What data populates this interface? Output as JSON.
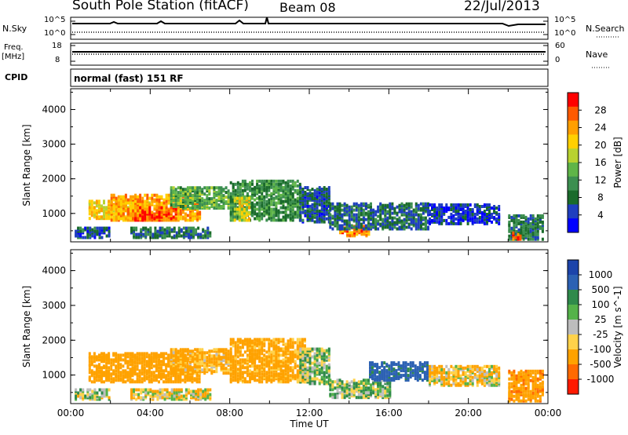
{
  "header": {
    "station": "South Pole Station (fitACF)",
    "beam": "Beam 08",
    "date": "22/Jul/2013"
  },
  "top_panels": {
    "nsky_label": "N.Sky",
    "nsky_top_tick": "10^5",
    "nsky_bottom_tick": "10^0",
    "nsearch_label": "N.Search",
    "nsearch_top_tick": "10^5",
    "nsearch_bottom_tick": "10^0",
    "freq_label": "Freq.",
    "freq_unit": "[MHz]",
    "freq_ticks": [
      "18",
      "8"
    ],
    "nave_label": "Nave",
    "nave_ticks": [
      "60",
      "0"
    ],
    "cpid_label": "CPID",
    "cpid_value": "normal (fast) 151 RF"
  },
  "chart_data": [
    {
      "type": "heatmap",
      "name": "power",
      "ylabel": "Slant Range [km]",
      "ylim": [
        180,
        4600
      ],
      "yticks": [
        1000,
        2000,
        3000,
        4000
      ],
      "colorbar": {
        "label": "Power [dB]",
        "ticks": [
          "4",
          "8",
          "12",
          "16",
          "20",
          "24",
          "28"
        ],
        "colors": [
          "#0000ff",
          "#1f3fbf",
          "#1a6b2b",
          "#3c8f50",
          "#5fb548",
          "#b8d230",
          "#ffd000",
          "#ff9f00",
          "#ff5a00",
          "#ff0000"
        ]
      },
      "regions": [
        {
          "t": [
            0.9,
            4.0
          ],
          "r": [
            900,
            1400
          ],
          "v": 22
        },
        {
          "t": [
            2.0,
            6.5
          ],
          "r": [
            850,
            1600
          ],
          "v": 24
        },
        {
          "t": [
            3.2,
            5.3
          ],
          "r": [
            850,
            1250
          ],
          "v": 28
        },
        {
          "t": [
            5.0,
            8.0
          ],
          "r": [
            1200,
            1800
          ],
          "v": 14
        },
        {
          "t": [
            8.0,
            11.5
          ],
          "r": [
            850,
            2000
          ],
          "v": 12
        },
        {
          "t": [
            8.2,
            9.0
          ],
          "r": [
            850,
            1500
          ],
          "v": 20
        },
        {
          "t": [
            11.5,
            13.0
          ],
          "r": [
            800,
            1800
          ],
          "v": 8
        },
        {
          "t": [
            13.5,
            15.0
          ],
          "r": [
            400,
            700
          ],
          "v": 26
        },
        {
          "t": [
            13.0,
            18.0
          ],
          "r": [
            600,
            1350
          ],
          "v": 9
        },
        {
          "t": [
            18.0,
            21.5
          ],
          "r": [
            750,
            1300
          ],
          "v": 6
        },
        {
          "t": [
            22.0,
            23.8
          ],
          "r": [
            300,
            1000
          ],
          "v": 10
        },
        {
          "t": [
            22.2,
            22.6
          ],
          "r": [
            300,
            500
          ],
          "v": 28
        },
        {
          "t": [
            3.0,
            7.0
          ],
          "r": [
            350,
            650
          ],
          "v": 10
        },
        {
          "t": [
            0.2,
            2.0
          ],
          "r": [
            350,
            650
          ],
          "v": 8
        }
      ]
    },
    {
      "type": "heatmap",
      "name": "velocity",
      "xlabel": "Time UT",
      "ylabel": "Slant Range [km]",
      "ylim": [
        180,
        4600
      ],
      "yticks": [
        1000,
        2000,
        3000,
        4000
      ],
      "xticks": [
        "00:00",
        "04:00",
        "08:00",
        "12:00",
        "16:00",
        "20:00",
        "00:00"
      ],
      "colorbar": {
        "label": "Velocity [m s^-1]",
        "ticks": [
          "1000",
          "500",
          "100",
          "25",
          "-25",
          "-100",
          "-500",
          "-1000"
        ],
        "colors": [
          "#1c44aa",
          "#2c61b3",
          "#2f8a4b",
          "#55b24a",
          "#bdbdbd",
          "#ffd24a",
          "#ffa200",
          "#ff6a00",
          "#ff1a00"
        ]
      },
      "regions": [
        {
          "t": [
            0.9,
            6.5
          ],
          "r": [
            850,
            1700
          ],
          "v": -300
        },
        {
          "t": [
            5.0,
            8.0
          ],
          "r": [
            1100,
            1800
          ],
          "v": -150
        },
        {
          "t": [
            8.0,
            11.8
          ],
          "r": [
            850,
            2100
          ],
          "v": -200
        },
        {
          "t": [
            11.5,
            13.0
          ],
          "r": [
            800,
            1800
          ],
          "v": 50
        },
        {
          "t": [
            13.0,
            16.0
          ],
          "r": [
            400,
            900
          ],
          "v": 60
        },
        {
          "t": [
            15.0,
            18.0
          ],
          "r": [
            900,
            1400
          ],
          "v": 600
        },
        {
          "t": [
            18.0,
            21.5
          ],
          "r": [
            750,
            1300
          ],
          "v": -80
        },
        {
          "t": [
            22.0,
            23.8
          ],
          "r": [
            300,
            1200
          ],
          "v": -400
        },
        {
          "t": [
            3.0,
            7.0
          ],
          "r": [
            350,
            650
          ],
          "v": -50
        },
        {
          "t": [
            0.2,
            2.0
          ],
          "r": [
            350,
            650
          ],
          "v": 20
        }
      ]
    }
  ]
}
